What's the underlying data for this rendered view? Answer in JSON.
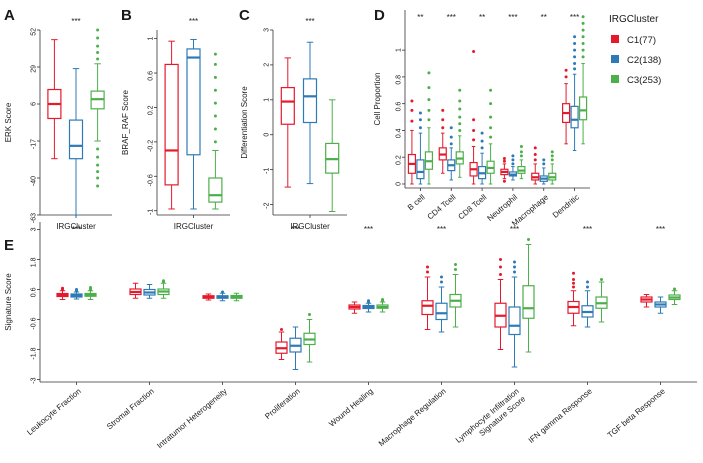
{
  "colors": {
    "C1": "#e41a2c",
    "C2": "#2e7ab6",
    "C3": "#4daf4a"
  },
  "legend": {
    "title": "IRGCluster",
    "items": [
      {
        "key": "C1",
        "label": "C1(77)",
        "color": "#e41a2c"
      },
      {
        "key": "C2",
        "label": "C2(138)",
        "color": "#2e7ab6"
      },
      {
        "key": "C3",
        "label": "C3(253)",
        "color": "#4daf4a"
      }
    ]
  },
  "chart_data": [
    {
      "type": "box",
      "panel": "A",
      "ylabel": "ERK Score",
      "xlabel": "IRGCluster",
      "ylim": [
        -63,
        52
      ],
      "yticks": [
        "52",
        "29",
        "6",
        "-17",
        "-40",
        "-63"
      ],
      "significance": "***",
      "boxes": [
        {
          "group": "C1",
          "min": -28,
          "q1": -3,
          "median": 6,
          "q3": 15,
          "max": 46,
          "outliers": []
        },
        {
          "group": "C2",
          "min": -63,
          "q1": -28,
          "median": -20,
          "q3": -4,
          "max": 28,
          "outliers": []
        },
        {
          "group": "C3",
          "min": -17,
          "q1": 3,
          "median": 9,
          "q3": 14,
          "max": 31,
          "outliers": [
            34,
            38,
            42,
            47,
            52,
            -22,
            -27,
            -32,
            -36,
            -40,
            -45
          ]
        }
      ]
    },
    {
      "type": "box",
      "panel": "B",
      "ylabel": "BRAF_RAF Score",
      "xlabel": "IRGCluster",
      "ylim": [
        -1.05,
        1.1
      ],
      "yticks": [
        "1",
        "0.6",
        "0.2",
        "-0.2",
        "-0.6",
        "-1"
      ],
      "significance": "***",
      "boxes": [
        {
          "group": "C1",
          "min": -0.98,
          "q1": -0.7,
          "median": -0.3,
          "q3": 0.7,
          "max": 0.97,
          "outliers": []
        },
        {
          "group": "C2",
          "min": -0.98,
          "q1": -0.35,
          "median": 0.78,
          "q3": 0.88,
          "max": 0.99,
          "outliers": []
        },
        {
          "group": "C3",
          "min": -0.98,
          "q1": -0.9,
          "median": -0.82,
          "q3": -0.62,
          "max": -0.3,
          "outliers": [
            -0.2,
            -0.05,
            0.1,
            0.25,
            0.4,
            0.55,
            0.7,
            0.82
          ]
        }
      ]
    },
    {
      "type": "box",
      "panel": "C",
      "ylabel": "Differentiation Score",
      "xlabel": "IRGCluster",
      "ylim": [
        -2.3,
        3.0
      ],
      "yticks": [
        "3",
        "2",
        "1",
        "0",
        "-1",
        "-2"
      ],
      "significance": "***",
      "boxes": [
        {
          "group": "C1",
          "min": -1.5,
          "q1": 0.3,
          "median": 0.95,
          "q3": 1.35,
          "max": 2.2,
          "outliers": []
        },
        {
          "group": "C2",
          "min": -1.4,
          "q1": 0.35,
          "median": 1.1,
          "q3": 1.6,
          "max": 2.65,
          "outliers": []
        },
        {
          "group": "C3",
          "min": -2.2,
          "q1": -1.1,
          "median": -0.7,
          "q3": -0.25,
          "max": 1.0,
          "outliers": []
        }
      ]
    },
    {
      "type": "box",
      "panel": "D",
      "ylabel": "Cell Proportion",
      "ylim": [
        -0.03,
        1.3
      ],
      "yticks": [
        "1",
        "0.8",
        "0.6",
        "0.4",
        "0.2",
        "0"
      ],
      "categories": [
        "B cell",
        "CD4 Tcell",
        "CD8 Tcell",
        "Neutrophil",
        "Macrophage",
        "Dendritic"
      ],
      "significance": [
        "**",
        "***",
        "**",
        "***",
        "**",
        "***"
      ],
      "boxes": [
        [
          {
            "group": "C1",
            "min": 0.0,
            "q1": 0.08,
            "median": 0.15,
            "q3": 0.22,
            "max": 0.4,
            "outliers": [
              0.47,
              0.55,
              0.62
            ]
          },
          {
            "group": "C2",
            "min": 0.0,
            "q1": 0.04,
            "median": 0.09,
            "q3": 0.18,
            "max": 0.38,
            "outliers": [
              0.42,
              0.48,
              0.53
            ]
          },
          {
            "group": "C3",
            "min": 0.0,
            "q1": 0.11,
            "median": 0.17,
            "q3": 0.24,
            "max": 0.42,
            "outliers": [
              0.48,
              0.55,
              0.63,
              0.72,
              0.83
            ]
          }
        ],
        [
          {
            "group": "C1",
            "min": 0.08,
            "q1": 0.18,
            "median": 0.22,
            "q3": 0.27,
            "max": 0.38,
            "outliers": [
              0.42,
              0.48,
              0.55
            ]
          },
          {
            "group": "C2",
            "min": 0.03,
            "q1": 0.1,
            "median": 0.14,
            "q3": 0.18,
            "max": 0.27,
            "outliers": [
              0.3,
              0.35,
              0.42
            ]
          },
          {
            "group": "C3",
            "min": 0.05,
            "q1": 0.15,
            "median": 0.19,
            "q3": 0.24,
            "max": 0.36,
            "outliers": [
              0.4,
              0.45,
              0.5,
              0.56,
              0.62,
              0.7
            ]
          }
        ],
        [
          {
            "group": "C1",
            "min": 0.0,
            "q1": 0.06,
            "median": 0.11,
            "q3": 0.16,
            "max": 0.28,
            "outliers": [
              0.33,
              0.4,
              0.48,
              0.99
            ]
          },
          {
            "group": "C2",
            "min": 0.0,
            "q1": 0.04,
            "median": 0.08,
            "q3": 0.13,
            "max": 0.23,
            "outliers": [
              0.27,
              0.32,
              0.38
            ]
          },
          {
            "group": "C3",
            "min": 0.0,
            "q1": 0.08,
            "median": 0.12,
            "q3": 0.17,
            "max": 0.3,
            "outliers": [
              0.35,
              0.42,
              0.5,
              0.6,
              0.7
            ]
          }
        ],
        [
          {
            "group": "C1",
            "min": 0.04,
            "q1": 0.07,
            "median": 0.09,
            "q3": 0.11,
            "max": 0.15,
            "outliers": [
              0.17,
              0.19,
              0.02
            ]
          },
          {
            "group": "C2",
            "min": 0.03,
            "q1": 0.06,
            "median": 0.07,
            "q3": 0.09,
            "max": 0.13,
            "outliers": [
              0.15,
              0.18,
              0.21
            ]
          },
          {
            "group": "C3",
            "min": 0.04,
            "q1": 0.08,
            "median": 0.1,
            "q3": 0.13,
            "max": 0.18,
            "outliers": [
              0.21,
              0.24,
              0.28
            ]
          }
        ],
        [
          {
            "group": "C1",
            "min": 0.0,
            "q1": 0.03,
            "median": 0.05,
            "q3": 0.08,
            "max": 0.15,
            "outliers": [
              0.18,
              0.22,
              0.27
            ]
          },
          {
            "group": "C2",
            "min": 0.0,
            "q1": 0.02,
            "median": 0.04,
            "q3": 0.06,
            "max": 0.12,
            "outliers": [
              0.15,
              0.18
            ]
          },
          {
            "group": "C3",
            "min": 0.0,
            "q1": 0.03,
            "median": 0.05,
            "q3": 0.08,
            "max": 0.15,
            "outliers": [
              0.18,
              0.21,
              0.24
            ]
          }
        ],
        [
          {
            "group": "C1",
            "min": 0.3,
            "q1": 0.46,
            "median": 0.53,
            "q3": 0.6,
            "max": 0.75,
            "outliers": [
              0.8,
              0.85
            ]
          },
          {
            "group": "C2",
            "min": 0.25,
            "q1": 0.42,
            "median": 0.48,
            "q3": 0.58,
            "max": 0.82,
            "outliers": [
              0.86,
              0.9,
              0.95,
              1.0,
              1.05,
              1.1
            ]
          },
          {
            "group": "C3",
            "min": 0.3,
            "q1": 0.48,
            "median": 0.55,
            "q3": 0.65,
            "max": 0.9,
            "outliers": [
              0.95,
              1.0,
              1.05,
              1.1,
              1.15,
              1.2,
              1.25
            ]
          }
        ]
      ]
    },
    {
      "type": "box",
      "panel": "E",
      "ylabel": "Signature Score",
      "ylim": [
        -3.1,
        3.3
      ],
      "yticks": [
        "3",
        "1.8",
        "0.6",
        "-0.6",
        "-1.8",
        "-3"
      ],
      "categories": [
        "Leukocyte Fraction",
        "Stromal Fraction",
        "Intratumor Heterogeneity",
        "Proliferation",
        "Wound Healing",
        "Macrophage Regulation",
        "Lymphocyte Infiltration\nSignature Score",
        "IFN gamma Response",
        "TGF beta Response"
      ],
      "significance": [
        "***",
        "",
        "",
        "***",
        "***",
        "***",
        "***",
        "***",
        "***"
      ],
      "boxes": [
        [
          {
            "group": "C1",
            "min": 0.2,
            "q1": 0.32,
            "median": 0.38,
            "q3": 0.44,
            "max": 0.55,
            "outliers": [
              0.6,
              0.65
            ]
          },
          {
            "group": "C2",
            "min": 0.22,
            "q1": 0.3,
            "median": 0.36,
            "q3": 0.42,
            "max": 0.5,
            "outliers": [
              0.55,
              0.6
            ]
          },
          {
            "group": "C3",
            "min": 0.2,
            "q1": 0.33,
            "median": 0.38,
            "q3": 0.44,
            "max": 0.55,
            "outliers": [
              0.58,
              0.62,
              0.68
            ]
          }
        ],
        [
          {
            "group": "C1",
            "min": 0.25,
            "q1": 0.4,
            "median": 0.5,
            "q3": 0.62,
            "max": 0.85,
            "outliers": []
          },
          {
            "group": "C2",
            "min": 0.25,
            "q1": 0.38,
            "median": 0.48,
            "q3": 0.6,
            "max": 0.8,
            "outliers": []
          },
          {
            "group": "C3",
            "min": 0.25,
            "q1": 0.4,
            "median": 0.52,
            "q3": 0.62,
            "max": 0.85,
            "outliers": [
              0.9,
              0.95
            ]
          }
        ],
        [
          {
            "group": "C1",
            "min": 0.18,
            "q1": 0.25,
            "median": 0.3,
            "q3": 0.35,
            "max": 0.42,
            "outliers": []
          },
          {
            "group": "C2",
            "min": 0.15,
            "q1": 0.25,
            "median": 0.3,
            "q3": 0.35,
            "max": 0.45,
            "outliers": [
              0.5
            ]
          },
          {
            "group": "C3",
            "min": 0.15,
            "q1": 0.25,
            "median": 0.3,
            "q3": 0.36,
            "max": 0.45,
            "outliers": []
          }
        ],
        [
          {
            "group": "C1",
            "min": -2.2,
            "q1": -1.95,
            "median": -1.75,
            "q3": -1.5,
            "max": -1.1,
            "outliers": [
              -1.0
            ]
          },
          {
            "group": "C2",
            "min": -2.6,
            "q1": -1.9,
            "median": -1.65,
            "q3": -1.35,
            "max": -0.9,
            "outliers": []
          },
          {
            "group": "C3",
            "min": -2.3,
            "q1": -1.6,
            "median": -1.4,
            "q3": -1.15,
            "max": -0.6,
            "outliers": [
              -0.4
            ]
          }
        ],
        [
          {
            "group": "C1",
            "min": -0.35,
            "q1": -0.18,
            "median": -0.1,
            "q3": -0.02,
            "max": 0.1,
            "outliers": []
          },
          {
            "group": "C2",
            "min": -0.3,
            "q1": -0.16,
            "median": -0.1,
            "q3": -0.04,
            "max": 0.05,
            "outliers": [
              0.1,
              0.15
            ]
          },
          {
            "group": "C3",
            "min": -0.3,
            "q1": -0.15,
            "median": -0.1,
            "q3": -0.02,
            "max": 0.1,
            "outliers": [
              0.15,
              0.2
            ]
          }
        ],
        [
          {
            "group": "C1",
            "min": -1.0,
            "q1": -0.4,
            "median": -0.05,
            "q3": 0.15,
            "max": 1.1,
            "outliers": [
              1.3,
              1.5
            ]
          },
          {
            "group": "C2",
            "min": -1.1,
            "q1": -0.6,
            "median": -0.35,
            "q3": 0.05,
            "max": 0.7,
            "outliers": [
              0.9,
              1.1
            ]
          },
          {
            "group": "C3",
            "min": -0.9,
            "q1": -0.1,
            "median": 0.15,
            "q3": 0.4,
            "max": 1.2,
            "outliers": [
              1.4,
              1.6
            ]
          }
        ],
        [
          {
            "group": "C1",
            "min": -1.8,
            "q1": -0.9,
            "median": -0.45,
            "q3": 0.05,
            "max": 1.0,
            "outliers": [
              1.2,
              1.5,
              1.8
            ]
          },
          {
            "group": "C2",
            "min": -2.5,
            "q1": -1.2,
            "median": -0.85,
            "q3": -0.1,
            "max": 1.1,
            "outliers": [
              1.3,
              1.5,
              1.7
            ]
          },
          {
            "group": "C3",
            "min": -1.9,
            "q1": -0.55,
            "median": -0.15,
            "q3": 0.75,
            "max": 2.4,
            "outliers": [
              2.6
            ]
          }
        ],
        [
          {
            "group": "C1",
            "min": -0.85,
            "q1": -0.35,
            "median": -0.1,
            "q3": 0.12,
            "max": 0.55,
            "outliers": [
              0.7,
              0.85,
              1.0,
              1.25
            ]
          },
          {
            "group": "C2",
            "min": -0.9,
            "q1": -0.5,
            "median": -0.3,
            "q3": -0.05,
            "max": 0.55,
            "outliers": [
              0.7,
              0.9
            ]
          },
          {
            "group": "C3",
            "min": -0.7,
            "q1": -0.15,
            "median": 0.05,
            "q3": 0.3,
            "max": 0.9,
            "outliers": [
              1.0
            ]
          }
        ],
        [
          {
            "group": "C1",
            "min": -0.1,
            "q1": 0.1,
            "median": 0.2,
            "q3": 0.3,
            "max": 0.4,
            "outliers": []
          },
          {
            "group": "C2",
            "min": -0.35,
            "q1": -0.1,
            "median": 0.0,
            "q3": 0.1,
            "max": 0.3,
            "outliers": []
          },
          {
            "group": "C3",
            "min": 0.0,
            "q1": 0.2,
            "median": 0.28,
            "q3": 0.38,
            "max": 0.55,
            "outliers": [
              0.62
            ]
          }
        ]
      ]
    }
  ]
}
